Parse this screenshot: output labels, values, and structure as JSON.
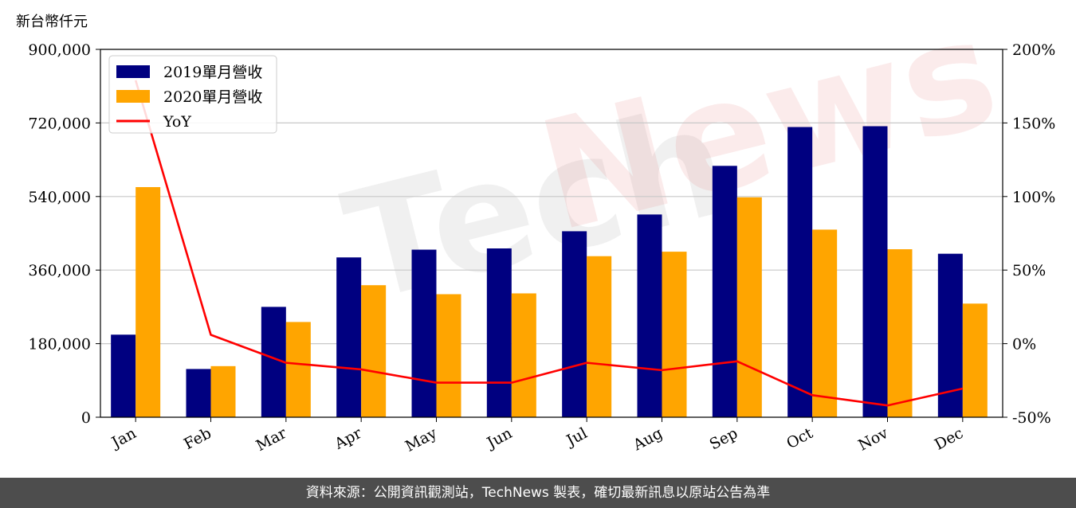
{
  "chart_data": {
    "type": "bar",
    "unit_label": "新台幣仟元",
    "categories": [
      "Jan",
      "Feb",
      "Mar",
      "Apr",
      "May",
      "Jun",
      "Jul",
      "Aug",
      "Sep",
      "Oct",
      "Nov",
      "Dec"
    ],
    "series": [
      {
        "name": "2019單月營收",
        "color": "#000080",
        "values": [
          202000,
          118000,
          270000,
          391000,
          410000,
          413000,
          455000,
          496000,
          615000,
          710000,
          712000,
          400000
        ]
      },
      {
        "name": "2020單月營收",
        "color": "#ffa500",
        "values": [
          563000,
          125000,
          233000,
          323000,
          301000,
          303000,
          394000,
          405000,
          538000,
          459000,
          411000,
          278000
        ]
      }
    ],
    "line": {
      "name": "YoY",
      "color": "#ff0000",
      "axis": "right",
      "values": [
        179,
        6,
        -13,
        -17.5,
        -26.5,
        -26.5,
        -13,
        -18,
        -12,
        -35,
        -42,
        -30.5
      ]
    },
    "y_left": {
      "lim": [
        0,
        900000
      ],
      "ticks": [
        "0",
        "180,000",
        "360,000",
        "540,000",
        "720,000",
        "900,000"
      ]
    },
    "y_right": {
      "lim": [
        -50,
        200
      ],
      "ticks": [
        "-50%",
        "0%",
        "50%",
        "100%",
        "150%",
        "200%"
      ]
    },
    "grid": true,
    "legend_position": "top-left"
  },
  "watermark": "TechNews",
  "footer": {
    "source_note": "資料來源：公開資訊觀測站，TechNews 製表，確切最新訊息以原站公告為準"
  }
}
